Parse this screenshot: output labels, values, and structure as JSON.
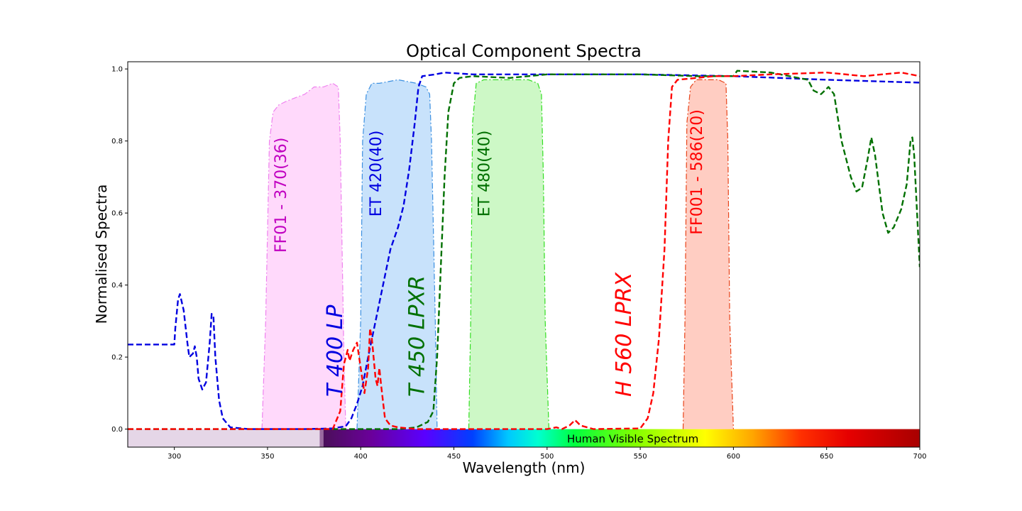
{
  "chart_data": {
    "type": "line",
    "title": "Optical Component Spectra",
    "xlabel": "Wavelength (nm)",
    "ylabel": "Normalised Spectra",
    "xlim": [
      275,
      700
    ],
    "ylim": [
      -0.05,
      1.02
    ],
    "x_ticks": [
      300,
      350,
      400,
      450,
      500,
      550,
      600,
      650,
      700
    ],
    "y_ticks": [
      0.0,
      0.2,
      0.4,
      0.6,
      0.8,
      1.0
    ],
    "grid": false,
    "visible_spectrum_band": {
      "label": "Human Visible Spectrum",
      "range": [
        380,
        700
      ],
      "uv_region": [
        275,
        380
      ]
    },
    "filters": [
      {
        "label": "FF01 - 370(36)",
        "color": "#ee82ee",
        "fill": "#ffd9fb",
        "text_color": "#c000c0",
        "points": [
          [
            347,
            0
          ],
          [
            349,
            0.3
          ],
          [
            351,
            0.8
          ],
          [
            353,
            0.88
          ],
          [
            356,
            0.9
          ],
          [
            360,
            0.91
          ],
          [
            365,
            0.92
          ],
          [
            370,
            0.93
          ],
          [
            375,
            0.95
          ],
          [
            380,
            0.95
          ],
          [
            385,
            0.96
          ],
          [
            388,
            0.95
          ],
          [
            389,
            0.8
          ],
          [
            391,
            0.2
          ],
          [
            392,
            0
          ]
        ]
      },
      {
        "label": "ET 420(40)",
        "color": "#3b8fe0",
        "fill": "#c8e2fb",
        "text_color": "#0000e0",
        "points": [
          [
            398,
            0
          ],
          [
            400,
            0.3
          ],
          [
            401,
            0.8
          ],
          [
            403,
            0.93
          ],
          [
            406,
            0.96
          ],
          [
            410,
            0.96
          ],
          [
            420,
            0.97
          ],
          [
            430,
            0.96
          ],
          [
            435,
            0.95
          ],
          [
            437,
            0.93
          ],
          [
            438,
            0.8
          ],
          [
            440,
            0.3
          ],
          [
            441,
            0
          ]
        ]
      },
      {
        "label": "ET 480(40)",
        "color": "#33dd22",
        "fill": "#cdf8c6",
        "text_color": "#007000",
        "points": [
          [
            458,
            0
          ],
          [
            459,
            0.3
          ],
          [
            460,
            0.85
          ],
          [
            462,
            0.96
          ],
          [
            466,
            0.97
          ],
          [
            470,
            0.97
          ],
          [
            480,
            0.97
          ],
          [
            490,
            0.97
          ],
          [
            495,
            0.96
          ],
          [
            497,
            0.93
          ],
          [
            498,
            0.7
          ],
          [
            499,
            0.3
          ],
          [
            501,
            0
          ]
        ]
      },
      {
        "label": "FF001 - 586(20)",
        "color": "#e8441a",
        "fill": "#ffcdc2",
        "text_color": "#ff0000",
        "points": [
          [
            573,
            0
          ],
          [
            574,
            0.3
          ],
          [
            575,
            0.85
          ],
          [
            577,
            0.95
          ],
          [
            580,
            0.97
          ],
          [
            586,
            0.97
          ],
          [
            592,
            0.97
          ],
          [
            596,
            0.96
          ],
          [
            597,
            0.8
          ],
          [
            598,
            0.3
          ],
          [
            600,
            0
          ]
        ]
      }
    ],
    "series": [
      {
        "name": "T 400 LP",
        "color": "#0000e0",
        "points": [
          [
            275,
            0.235
          ],
          [
            300,
            0.235
          ],
          [
            300.5,
            0.28
          ],
          [
            302,
            0.36
          ],
          [
            303,
            0.375
          ],
          [
            305,
            0.33
          ],
          [
            307,
            0.24
          ],
          [
            308,
            0.2
          ],
          [
            310,
            0.21
          ],
          [
            311,
            0.23
          ],
          [
            312,
            0.2
          ],
          [
            313,
            0.14
          ],
          [
            315,
            0.11
          ],
          [
            317,
            0.13
          ],
          [
            319,
            0.24
          ],
          [
            320,
            0.32
          ],
          [
            321,
            0.31
          ],
          [
            322,
            0.2
          ],
          [
            324,
            0.08
          ],
          [
            326,
            0.03
          ],
          [
            330,
            0.005
          ],
          [
            340,
            0
          ],
          [
            370,
            0
          ],
          [
            385,
            0.002
          ],
          [
            392,
            0.008
          ],
          [
            395,
            0.03
          ],
          [
            398,
            0.07
          ],
          [
            401,
            0.12
          ],
          [
            404,
            0.2
          ],
          [
            408,
            0.3
          ],
          [
            412,
            0.4
          ],
          [
            416,
            0.5
          ],
          [
            420,
            0.56
          ],
          [
            423,
            0.62
          ],
          [
            426,
            0.72
          ],
          [
            429,
            0.85
          ],
          [
            431,
            0.95
          ],
          [
            433,
            0.98
          ],
          [
            440,
            0.985
          ],
          [
            445,
            0.99
          ],
          [
            460,
            0.985
          ],
          [
            500,
            0.985
          ],
          [
            550,
            0.985
          ],
          [
            600,
            0.98
          ],
          [
            650,
            0.97
          ],
          [
            700,
            0.962
          ]
        ]
      },
      {
        "name": "T 450 LPXR",
        "color": "#007000",
        "points": [
          [
            275,
            0
          ],
          [
            420,
            0
          ],
          [
            430,
            0.005
          ],
          [
            436,
            0.02
          ],
          [
            439,
            0.05
          ],
          [
            441,
            0.2
          ],
          [
            443,
            0.45
          ],
          [
            445,
            0.7
          ],
          [
            447,
            0.88
          ],
          [
            450,
            0.96
          ],
          [
            453,
            0.975
          ],
          [
            460,
            0.98
          ],
          [
            480,
            0.975
          ],
          [
            500,
            0.985
          ],
          [
            550,
            0.985
          ],
          [
            580,
            0.98
          ],
          [
            600,
            0.98
          ],
          [
            602,
            0.995
          ],
          [
            620,
            0.99
          ],
          [
            640,
            0.97
          ],
          [
            643,
            0.94
          ],
          [
            647,
            0.93
          ],
          [
            651,
            0.95
          ],
          [
            654,
            0.93
          ],
          [
            658,
            0.8
          ],
          [
            663,
            0.7
          ],
          [
            666,
            0.66
          ],
          [
            669,
            0.67
          ],
          [
            672,
            0.75
          ],
          [
            674,
            0.81
          ],
          [
            676,
            0.76
          ],
          [
            680,
            0.6
          ],
          [
            683,
            0.545
          ],
          [
            686,
            0.56
          ],
          [
            690,
            0.61
          ],
          [
            693,
            0.68
          ],
          [
            695,
            0.8
          ],
          [
            696,
            0.81
          ],
          [
            697,
            0.76
          ],
          [
            699,
            0.55
          ],
          [
            700,
            0.45
          ]
        ]
      },
      {
        "name": "H 560 LPRX",
        "color": "#ff0000",
        "points": [
          [
            275,
            0
          ],
          [
            385,
            0
          ],
          [
            389,
            0.05
          ],
          [
            391,
            0.18
          ],
          [
            393,
            0.22
          ],
          [
            394,
            0.19
          ],
          [
            396,
            0.22
          ],
          [
            398,
            0.24
          ],
          [
            400,
            0.17
          ],
          [
            402,
            0.1
          ],
          [
            404,
            0.17
          ],
          [
            405,
            0.28
          ],
          [
            406,
            0.25
          ],
          [
            408,
            0.14
          ],
          [
            409,
            0.12
          ],
          [
            410,
            0.17
          ],
          [
            411,
            0.12
          ],
          [
            413,
            0.03
          ],
          [
            416,
            0.01
          ],
          [
            420,
            0.005
          ],
          [
            430,
            0
          ],
          [
            500,
            0
          ],
          [
            505,
            0.005
          ],
          [
            508,
            0
          ],
          [
            512,
            0.01
          ],
          [
            515,
            0.025
          ],
          [
            518,
            0.01
          ],
          [
            525,
            0
          ],
          [
            550,
            0.002
          ],
          [
            554,
            0.03
          ],
          [
            557,
            0.1
          ],
          [
            560,
            0.25
          ],
          [
            563,
            0.5
          ],
          [
            565,
            0.8
          ],
          [
            567,
            0.95
          ],
          [
            570,
            0.97
          ],
          [
            590,
            0.98
          ],
          [
            600,
            0.98
          ],
          [
            620,
            0.985
          ],
          [
            650,
            0.99
          ],
          [
            670,
            0.98
          ],
          [
            690,
            0.99
          ],
          [
            700,
            0.98
          ]
        ]
      }
    ],
    "annotations": [
      {
        "text": "FF01 - 370(36)",
        "x": 360,
        "y": 0.49,
        "color": "#c000c0",
        "style": "normal",
        "size": 22
      },
      {
        "text": "ET 420(40)",
        "x": 411,
        "y": 0.59,
        "color": "#0000e0",
        "style": "normal",
        "size": 22
      },
      {
        "text": "ET 480(40)",
        "x": 469,
        "y": 0.59,
        "color": "#007000",
        "style": "normal",
        "size": 22
      },
      {
        "text": "FF001 - 586(20)",
        "x": 583,
        "y": 0.54,
        "color": "#ff0000",
        "style": "normal",
        "size": 22
      },
      {
        "text": "T 400 LP",
        "x": 390,
        "y": 0.09,
        "color": "#0000e0",
        "style": "italic",
        "size": 30
      },
      {
        "text": "T 450 LPXR",
        "x": 434,
        "y": 0.09,
        "color": "#007000",
        "style": "italic",
        "size": 30
      },
      {
        "text": "H 560 LPRX",
        "x": 545,
        "y": 0.09,
        "color": "#ff0000",
        "style": "italic",
        "size": 30
      }
    ]
  }
}
